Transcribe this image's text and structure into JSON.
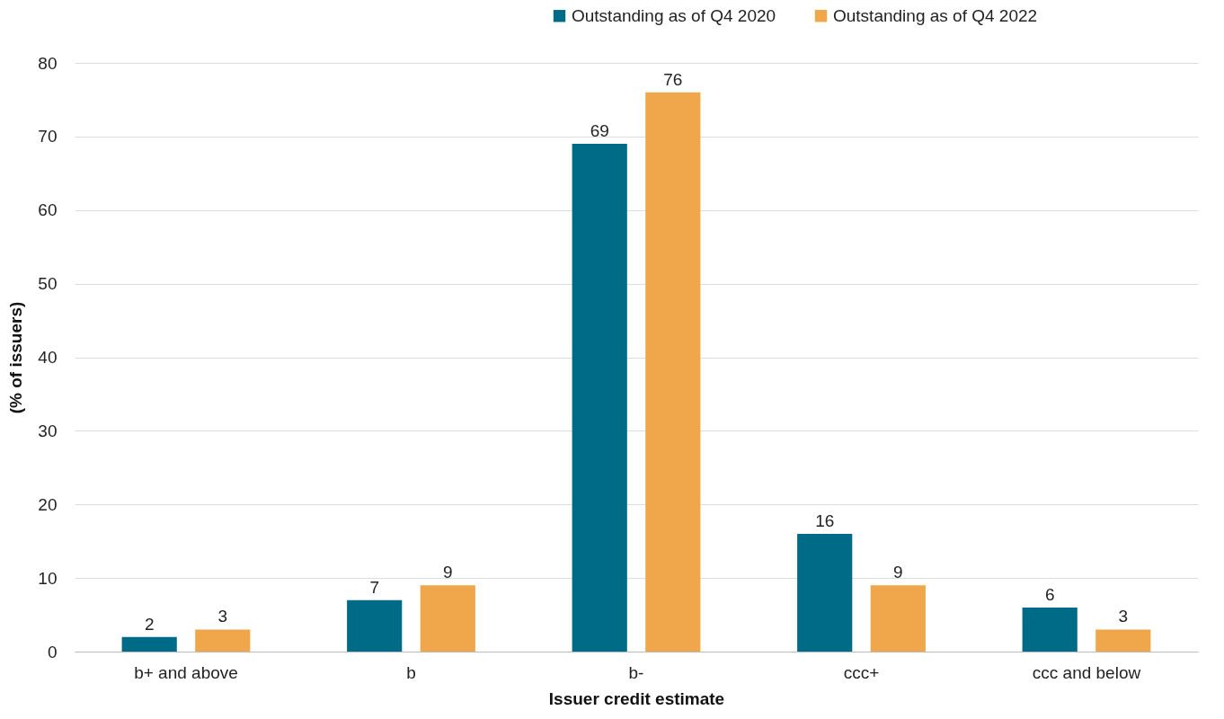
{
  "chart_data": {
    "type": "bar",
    "xlabel": "Issuer credit estimate",
    "ylabel": "(% of issuers)",
    "categories": [
      "b+ and above",
      "b",
      "b-",
      "ccc+",
      "ccc and below"
    ],
    "series": [
      {
        "name": "Outstanding as of Q4 2020",
        "color": "#006b87",
        "values": [
          2,
          7,
          69,
          16,
          6
        ]
      },
      {
        "name": "Outstanding as of Q4 2022",
        "color": "#f0a64a",
        "values": [
          3,
          9,
          76,
          9,
          3
        ]
      }
    ],
    "ylim": [
      0,
      80
    ],
    "yticks": [
      0,
      10,
      20,
      30,
      40,
      50,
      60,
      70,
      80
    ],
    "grid": "y",
    "legend": "top right",
    "data_labels": true
  }
}
